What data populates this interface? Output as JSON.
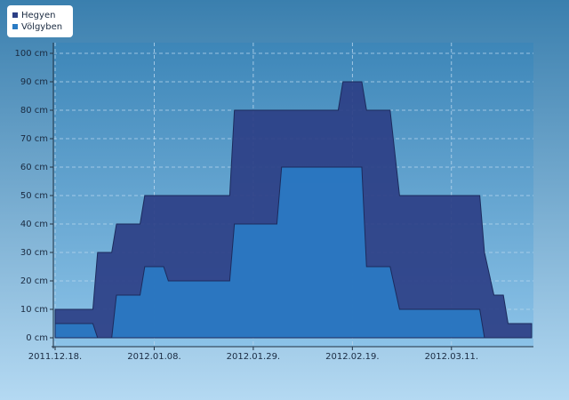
{
  "chart_data": {
    "type": "area",
    "x": [
      "2011-12-18",
      "2011-12-26",
      "2011-12-27",
      "2011-12-30",
      "2011-12-31",
      "2012-01-05",
      "2012-01-06",
      "2012-01-10",
      "2012-01-11",
      "2012-01-24",
      "2012-01-25",
      "2012-02-03",
      "2012-02-04",
      "2012-02-16",
      "2012-02-17",
      "2012-02-21",
      "2012-02-22",
      "2012-02-27",
      "2012-02-29",
      "2012-03-17",
      "2012-03-18",
      "2012-03-20",
      "2012-03-22",
      "2012-03-23",
      "2012-03-28"
    ],
    "series": [
      {
        "name": "Hegyen",
        "color": "#2c3f85",
        "values": [
          10,
          10,
          30,
          30,
          40,
          40,
          50,
          50,
          50,
          50,
          80,
          80,
          80,
          80,
          90,
          90,
          80,
          80,
          50,
          50,
          30,
          15,
          15,
          5,
          5
        ]
      },
      {
        "name": "Völgyben",
        "color": "#2a7bc4",
        "values": [
          5,
          5,
          0,
          0,
          15,
          15,
          25,
          25,
          20,
          20,
          40,
          40,
          60,
          60,
          60,
          60,
          25,
          25,
          10,
          10,
          0,
          0,
          0,
          0,
          0
        ]
      }
    ],
    "xlim": [
      "2011-12-18",
      "2012-03-28"
    ],
    "xticks": [
      {
        "value": "2011-12-18",
        "label": "2011.12.18."
      },
      {
        "value": "2012-01-08",
        "label": "2012.01.08."
      },
      {
        "value": "2012-01-29",
        "label": "2012.01.29."
      },
      {
        "value": "2012-02-19",
        "label": "2012.02.19."
      },
      {
        "value": "2012-03-11",
        "label": "2012.03.11."
      }
    ],
    "ylim": [
      0,
      100
    ],
    "yticks": [
      {
        "value": 0,
        "label": "0 cm"
      },
      {
        "value": 10,
        "label": "10 cm"
      },
      {
        "value": 20,
        "label": "20 cm"
      },
      {
        "value": 30,
        "label": "30 cm"
      },
      {
        "value": 40,
        "label": "40 cm"
      },
      {
        "value": 50,
        "label": "50 cm"
      },
      {
        "value": 60,
        "label": "60 cm"
      },
      {
        "value": 70,
        "label": "70 cm"
      },
      {
        "value": 80,
        "label": "80 cm"
      },
      {
        "value": 90,
        "label": "90 cm"
      },
      {
        "value": 100,
        "label": "100 cm"
      }
    ],
    "grid": true
  }
}
